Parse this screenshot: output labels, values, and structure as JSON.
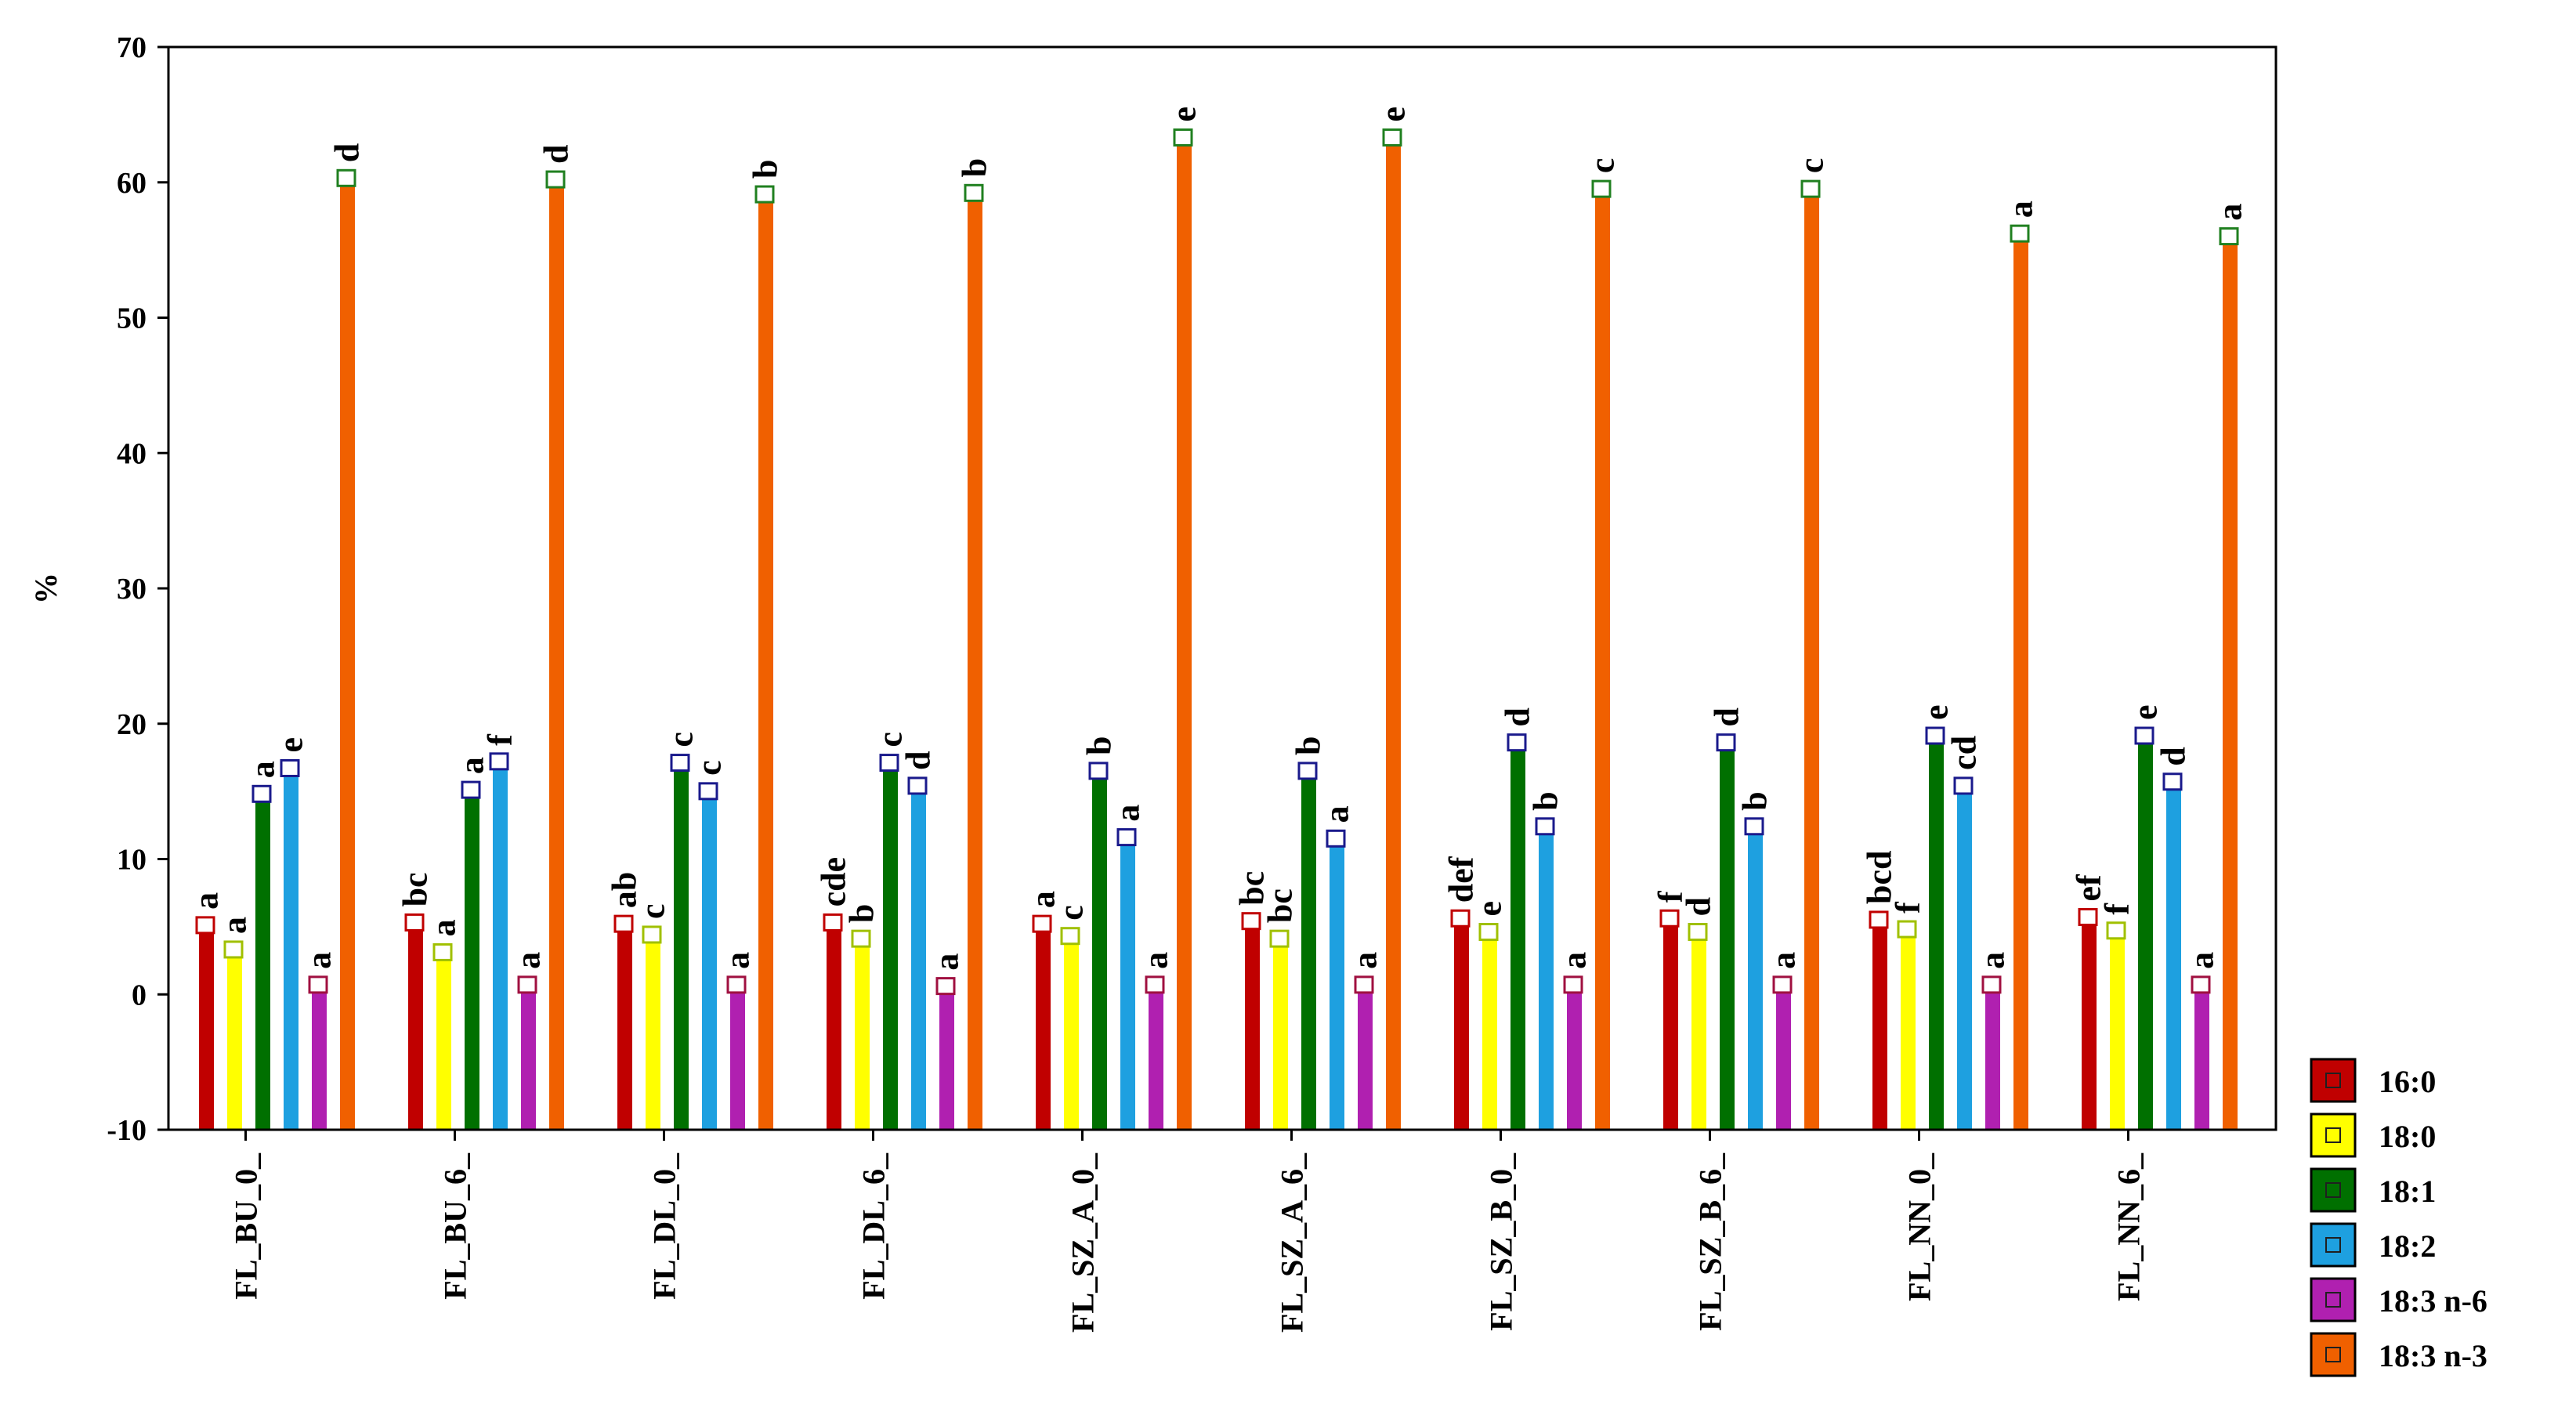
{
  "chart_data": {
    "type": "bar",
    "title": "",
    "xlabel": "",
    "ylabel": "%",
    "ylim": [
      -10,
      70
    ],
    "yticks": [
      70,
      60,
      50,
      40,
      30,
      20,
      10,
      0,
      -10
    ],
    "grid": false,
    "legend_position": "bottom-right, outside plot",
    "categories": [
      "FL_BU_0_",
      "FL_BU_6_",
      "FL_DL_0_",
      "FL_DL_6_",
      "FL_SZ_A_0_",
      "FL_SZ_A_6_",
      "FL_SZ_B_0_",
      "FL_SZ_B_6_",
      "FL_NN_0_",
      "FL_NN_6_"
    ],
    "series": [
      {
        "name": "16:0",
        "color": "#c00000",
        "marker_color": "#c00000",
        "values": [
          5.0,
          5.2,
          5.1,
          5.2,
          5.1,
          5.3,
          5.5,
          5.5,
          5.4,
          5.6
        ],
        "letters": [
          "a",
          "bc",
          "ab",
          "cde",
          "a",
          "bc",
          "def",
          "f",
          "bcd",
          "ef"
        ]
      },
      {
        "name": "18:0",
        "color": "#ffff00",
        "marker_color": "#a0c000",
        "values": [
          3.2,
          3.0,
          4.3,
          4.0,
          4.2,
          4.0,
          4.5,
          4.5,
          4.7,
          4.6
        ],
        "letters": [
          "a",
          "a",
          "c",
          "b",
          "c",
          "bc",
          "e",
          "d",
          "f",
          "f"
        ]
      },
      {
        "name": "18:1",
        "color": "#007000",
        "marker_color": "#1a1a8c",
        "values": [
          14.7,
          15.0,
          17.0,
          17.0,
          16.4,
          16.4,
          18.5,
          18.5,
          19.0,
          19.0
        ],
        "letters": [
          "a",
          "a",
          "c",
          "c",
          "b",
          "b",
          "d",
          "d",
          "e",
          "e"
        ]
      },
      {
        "name": "18:2",
        "color": "#1ea0e0",
        "marker_color": "#1a1a8c",
        "values": [
          16.6,
          17.1,
          14.9,
          15.3,
          11.5,
          11.4,
          12.3,
          12.3,
          15.3,
          15.6
        ],
        "letters": [
          "e",
          "f",
          "c",
          "d",
          "a",
          "a",
          "b",
          "b",
          "cd",
          "d"
        ]
      },
      {
        "name": "18:3 n-6",
        "color": "#b020b0",
        "marker_color": "#a01040",
        "values": [
          0.6,
          0.6,
          0.6,
          0.5,
          0.6,
          0.6,
          0.6,
          0.6,
          0.6,
          0.6
        ],
        "letters": [
          "a",
          "a",
          "a",
          "a",
          "a",
          "a",
          "a",
          "a",
          "a",
          "a"
        ]
      },
      {
        "name": "18:3 n-3",
        "color": "#f06000",
        "marker_color": "#208020",
        "values": [
          60.2,
          60.1,
          59.0,
          59.1,
          63.2,
          63.2,
          59.4,
          59.4,
          56.1,
          55.9
        ],
        "letters": [
          "d",
          "d",
          "b",
          "b",
          "e",
          "e",
          "c",
          "c",
          "a",
          "a"
        ]
      }
    ]
  }
}
